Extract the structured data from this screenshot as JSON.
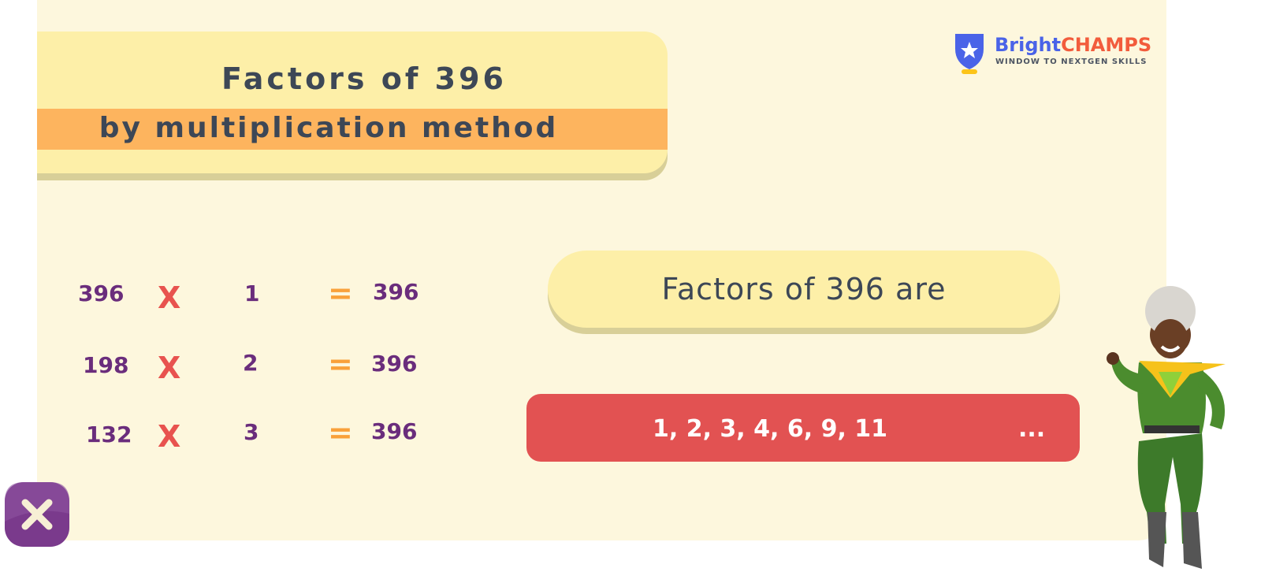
{
  "title": {
    "line1": "Factors of  396",
    "line2": "by multiplication method"
  },
  "equations": [
    {
      "a": "396",
      "op": "X",
      "b": "1",
      "eq": "=",
      "result": "396"
    },
    {
      "a": "198",
      "op": "X",
      "b": "2",
      "eq": "=",
      "result": "396"
    },
    {
      "a": "132",
      "op": "X",
      "b": "3",
      "eq": "=",
      "result": "396"
    }
  ],
  "answer": {
    "heading": "Factors of 396 are",
    "list": "1, 2, 3, 4, 6, 9, 11",
    "ellipsis": "..."
  },
  "logo": {
    "brand1": "Bright",
    "brand2": "CHAMPS",
    "tagline": "WINDOW TO NEXTGEN SKILLS"
  },
  "colors": {
    "panel": "#fdf7dd",
    "title_card": "#fdefa8",
    "band": "#fdb45e",
    "number": "#6a2d7c",
    "times": "#e8534f",
    "equals": "#f9a13a",
    "answer_bar": "#e25252"
  },
  "icons": {
    "close": "close-icon",
    "logo": "shield-star-icon"
  }
}
